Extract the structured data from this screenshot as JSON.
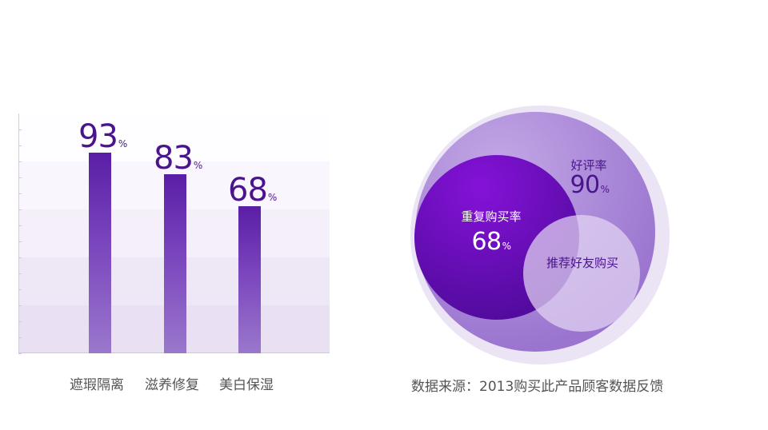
{
  "colors": {
    "bar_top": "#5a1ea6",
    "bar_bottom": "#9a78cc",
    "value_text": "#4a148c",
    "label_text": "#555555",
    "outer_halo": "#ebe4f5",
    "big_circle": "#a786d4",
    "dark_circle": "#6a0fc0",
    "light_circle": "#d6c6ec"
  },
  "chart_data": [
    {
      "type": "bar",
      "categories": [
        "遮瑕隔离",
        "滋养修复",
        "美白保湿"
      ],
      "values": [
        93,
        83,
        68
      ],
      "value_labels": [
        {
          "number": "93",
          "unit": "%"
        },
        {
          "number": "83",
          "unit": "%"
        },
        {
          "number": "68",
          "unit": "%"
        }
      ],
      "ylim": [
        0,
        100
      ],
      "grid": "alternating horizontal bands",
      "xlabel": "",
      "ylabel": ""
    },
    {
      "type": "venn",
      "sets": [
        {
          "label": "好评率",
          "number": "90",
          "unit": "%"
        },
        {
          "label": "重复购买率",
          "number": "68",
          "unit": "%"
        },
        {
          "label": "推荐好友购买"
        }
      ],
      "caption": "数据来源：2013购买此产品顾客数据反馈"
    }
  ]
}
